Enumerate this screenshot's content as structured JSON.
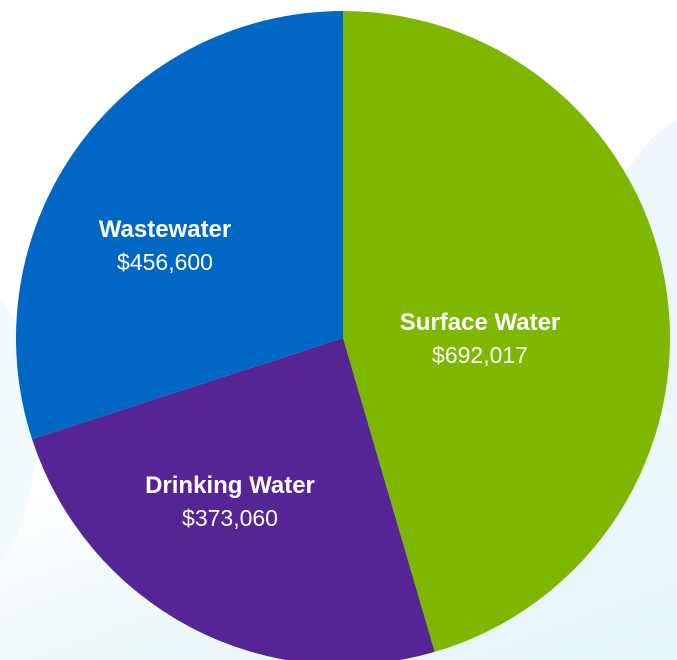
{
  "chart_data": {
    "type": "pie",
    "start_angle_deg": 0,
    "direction": "clockwise",
    "slices": [
      {
        "name": "Surface Water",
        "value": 692017,
        "value_label": "$692,017",
        "color": "#7db700"
      },
      {
        "name": "Drinking Water",
        "value": 373060,
        "value_label": "$373,060",
        "color": "#552596"
      },
      {
        "name": "Wastewater",
        "value": 456600,
        "value_label": "$456,600",
        "color": "#0067c5"
      }
    ]
  }
}
